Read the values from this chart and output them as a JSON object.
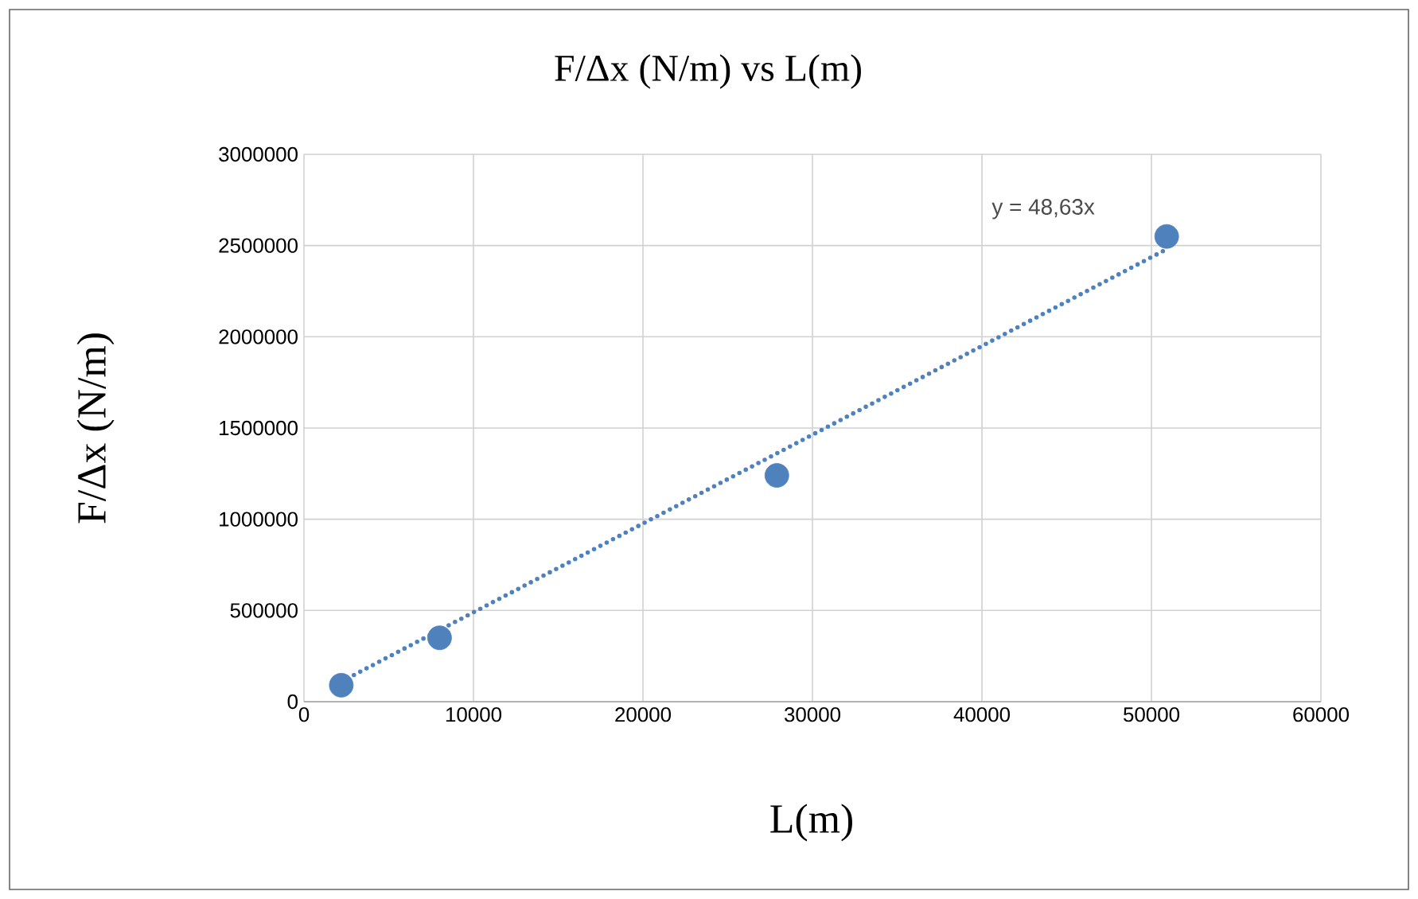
{
  "chart_data": {
    "type": "scatter",
    "title": "F/Δx (N/m) vs L(m)",
    "xlabel": "L(m)",
    "ylabel": "F/Δx (N/m)",
    "series": [
      {
        "color": "#4f81bd",
        "marker": "circle",
        "x": [
          2200,
          8000,
          27900,
          50900
        ],
        "values": [
          90000,
          350000,
          1240000,
          2550000
        ]
      },
      {
        "type": "line",
        "color": "#4f81bd",
        "line_style": "dotted",
        "marker": "none",
        "x": [
          2200,
          50900
        ],
        "values": [
          110000,
          2480000
        ]
      }
    ],
    "annotations": [
      "y = 48,63x"
    ],
    "xlim": [
      0,
      60000
    ],
    "ylim": [
      0,
      3000000
    ],
    "xticks": [
      0,
      10000,
      20000,
      30000,
      40000,
      50000,
      60000
    ],
    "yticks": [
      0,
      500000,
      1000000,
      1500000,
      2000000,
      2500000,
      3000000
    ],
    "grid": true
  }
}
